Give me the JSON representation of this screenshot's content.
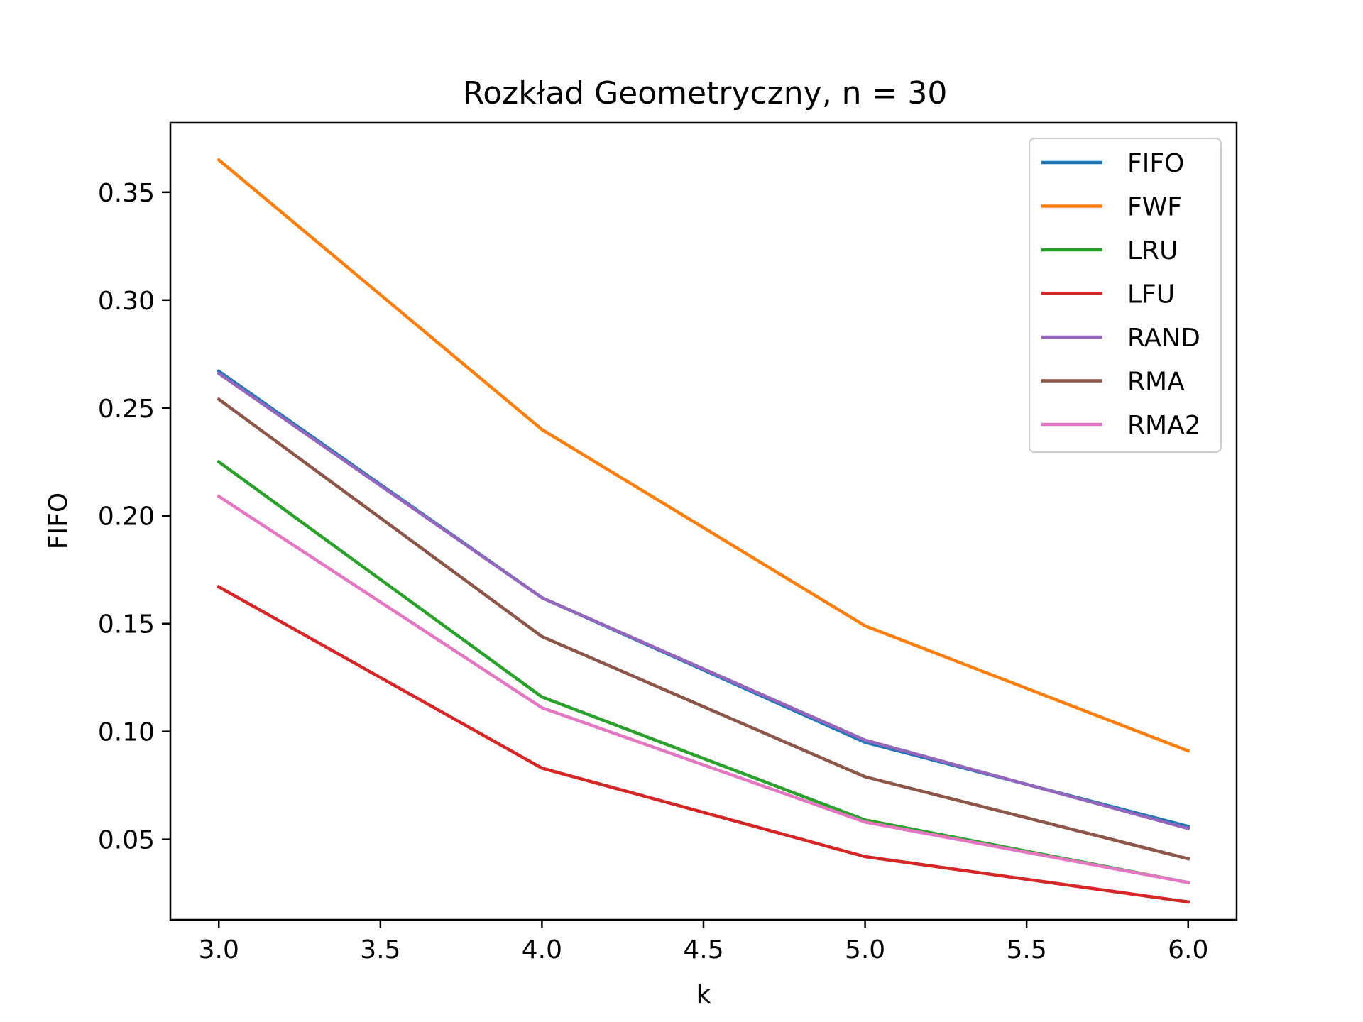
{
  "chart_data": {
    "type": "line",
    "title": "Rozkład Geometryczny, n = 30",
    "xlabel": "k",
    "ylabel": "FIFO",
    "x": [
      3.0,
      4.0,
      5.0,
      6.0
    ],
    "xlim": [
      2.85,
      6.15
    ],
    "ylim": [
      0.0127,
      0.3822
    ],
    "xticks": [
      "3.0",
      "3.5",
      "4.0",
      "4.5",
      "5.0",
      "5.5",
      "6.0"
    ],
    "xtick_values": [
      3.0,
      3.5,
      4.0,
      4.5,
      5.0,
      5.5,
      6.0
    ],
    "yticks": [
      "0.05",
      "0.10",
      "0.15",
      "0.20",
      "0.25",
      "0.30",
      "0.35"
    ],
    "ytick_values": [
      0.05,
      0.1,
      0.15,
      0.2,
      0.25,
      0.3,
      0.35
    ],
    "grid": false,
    "legend_position": "top-right",
    "series": [
      {
        "name": "FIFO",
        "color": "#1f77b4",
        "values": [
          0.267,
          0.162,
          0.095,
          0.056
        ]
      },
      {
        "name": "FWF",
        "color": "#ff7f0e",
        "values": [
          0.365,
          0.24,
          0.149,
          0.091
        ]
      },
      {
        "name": "LRU",
        "color": "#2ca02c",
        "values": [
          0.225,
          0.116,
          0.059,
          0.03
        ]
      },
      {
        "name": "LFU",
        "color": "#d62728",
        "values": [
          0.167,
          0.083,
          0.042,
          0.021
        ]
      },
      {
        "name": "RAND",
        "color": "#9467bd",
        "values": [
          0.266,
          0.162,
          0.096,
          0.055
        ]
      },
      {
        "name": "RMA",
        "color": "#8c564b",
        "values": [
          0.254,
          0.144,
          0.079,
          0.041
        ]
      },
      {
        "name": "RMA2",
        "color": "#e377c2",
        "values": [
          0.209,
          0.111,
          0.058,
          0.03
        ]
      }
    ]
  }
}
